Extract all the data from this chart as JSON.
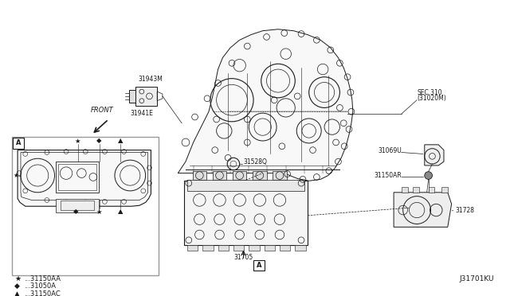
{
  "bg_color": "#ffffff",
  "fig_width": 6.4,
  "fig_height": 3.72,
  "dpi": 100,
  "diagram_id": "J31701KU",
  "line_color": "#1a1a1a",
  "text_color": "#1a1a1a",
  "label_fontsize": 5.5,
  "legend_fontsize": 6.0,
  "legend": [
    {
      "symbol": "★",
      "text": "···31150AA"
    },
    {
      "symbol": "◆",
      "text": "···31050A"
    },
    {
      "symbol": "▲",
      "text": "···31150AC"
    }
  ]
}
